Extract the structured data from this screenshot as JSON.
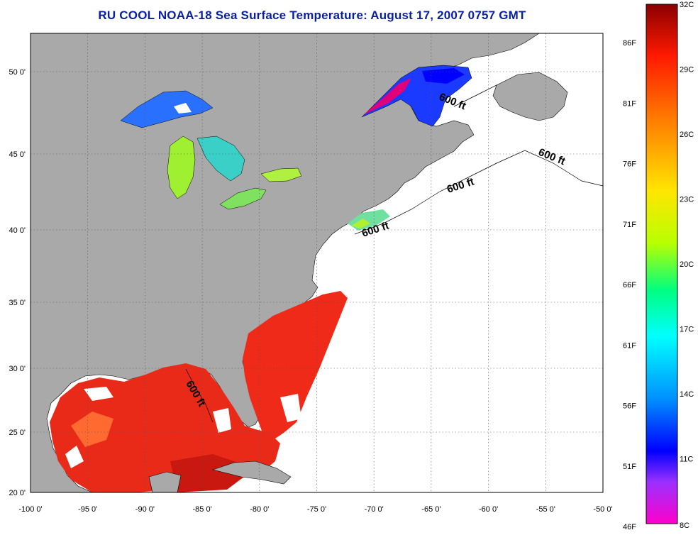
{
  "title": "RU COOL  NOAA-18  Sea Surface Temperature:  August 17, 2007 0757 GMT",
  "map": {
    "lon_ticks": [
      "-100 0'",
      "-95 0'",
      "-90 0'",
      "-85 0'",
      "-80 0'",
      "-75 0'",
      "-70 0'",
      "-65 0'",
      "-60 0'",
      "-55 0'",
      "-50 0'"
    ],
    "lat_ticks": [
      "50 0'",
      "45 0'",
      "40 0'",
      "35 0'",
      "30 0'",
      "25 0'",
      "20 0'"
    ],
    "grid": "dotted",
    "land_color": "#a9a9a9",
    "depth_labels": [
      "600 ft",
      "600 ft",
      "600 ft",
      "600 ft",
      "600 ft"
    ]
  },
  "colorbar": {
    "celsius": [
      "32C",
      "29C",
      "26C",
      "23C",
      "20C",
      "17C",
      "14C",
      "11C",
      "8C"
    ],
    "fahrenheit": [
      "86F",
      "81F",
      "76F",
      "71F",
      "66F",
      "61F",
      "56F",
      "51F",
      "46F"
    ],
    "colors": [
      "#8b0000",
      "#ff1a00",
      "#ff7a00",
      "#ffe600",
      "#b8ff00",
      "#00ff80",
      "#00ffff",
      "#0090ff",
      "#0000ff",
      "#9b30ff",
      "#ff00cc"
    ]
  }
}
